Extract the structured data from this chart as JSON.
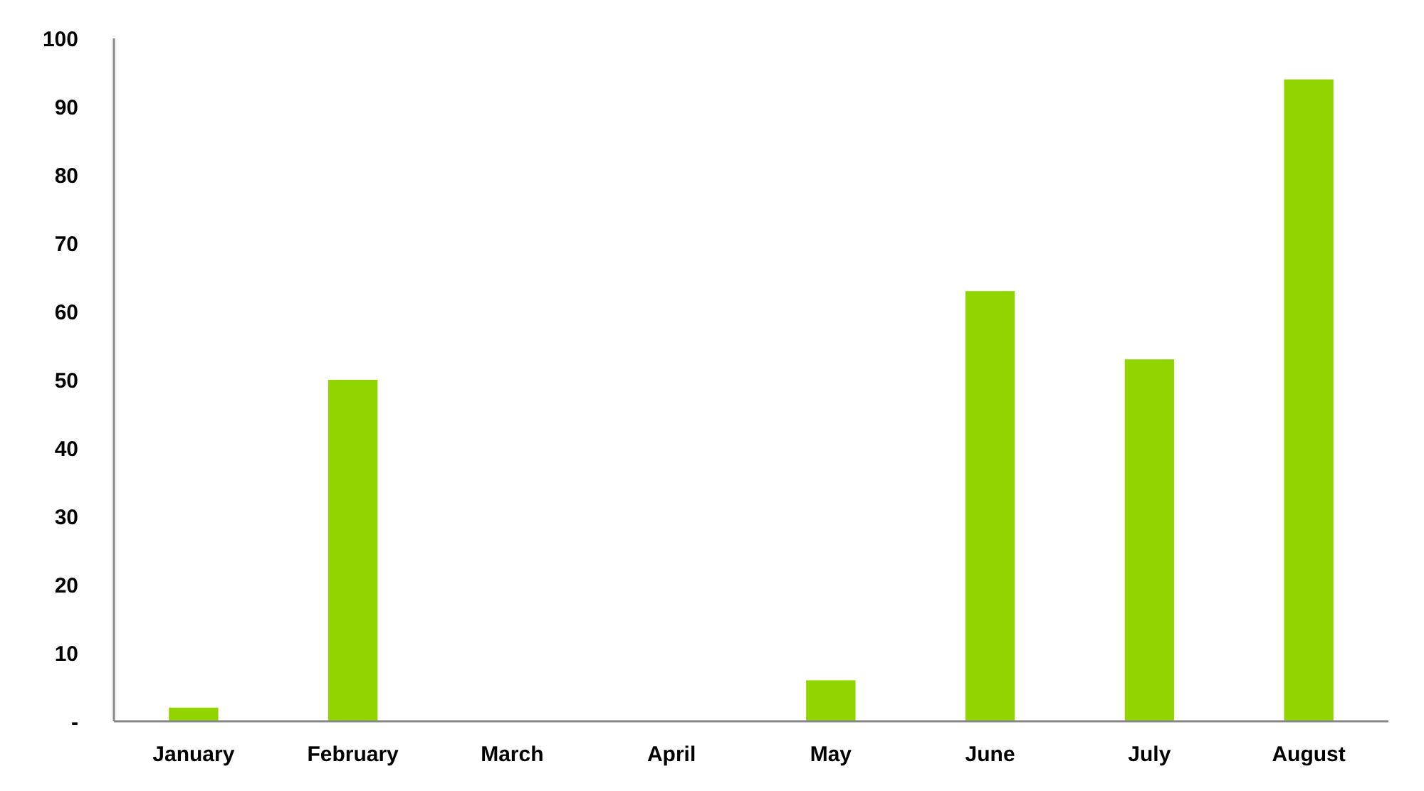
{
  "chart_data": {
    "type": "bar",
    "categories": [
      "January",
      "February",
      "March",
      "April",
      "May",
      "June",
      "July",
      "August"
    ],
    "values": [
      2,
      50,
      0,
      0,
      6,
      63,
      53,
      94
    ],
    "color": "#92d400",
    "ylim": [
      0,
      100
    ],
    "yticks": [
      {
        "value": 0,
        "label": "-"
      },
      10,
      20,
      30,
      40,
      50,
      60,
      70,
      80,
      90,
      100
    ],
    "grid": false
  }
}
